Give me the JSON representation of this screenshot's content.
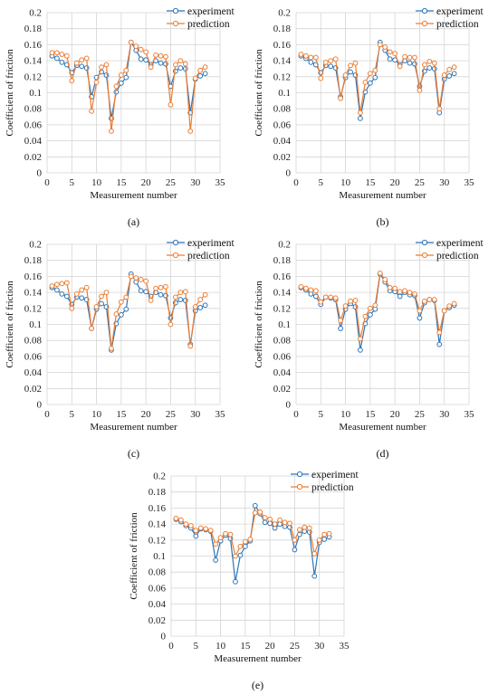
{
  "colors": {
    "experiment": "#2e75b6",
    "prediction": "#ed7d31",
    "grid": "#d4d4d4"
  },
  "chart_data": [
    {
      "panel_label": "(a)",
      "type": "line",
      "xlabel": "Measurement number",
      "ylabel": "Coefficient of friction",
      "xlim": [
        0,
        35
      ],
      "ylim": [
        0,
        0.2
      ],
      "xticks": [
        0,
        5,
        10,
        15,
        20,
        25,
        30,
        35
      ],
      "yticks": [
        "0",
        "0.02",
        "0.04",
        "0.06",
        "0.08",
        "0.1",
        "0.12",
        "0.14",
        "0.16",
        "0.18",
        "0.2"
      ],
      "grid": true,
      "legend_position": "top-right",
      "x": [
        1,
        2,
        3,
        4,
        5,
        6,
        7,
        8,
        9,
        10,
        11,
        12,
        13,
        14,
        15,
        16,
        17,
        18,
        19,
        20,
        21,
        22,
        23,
        24,
        25,
        26,
        27,
        28,
        29,
        30,
        31,
        32
      ],
      "series": [
        {
          "name": "experiment",
          "values": [
            0.146,
            0.143,
            0.138,
            0.135,
            0.125,
            0.134,
            0.133,
            0.131,
            0.095,
            0.119,
            0.126,
            0.122,
            0.068,
            0.101,
            0.112,
            0.119,
            0.163,
            0.153,
            0.142,
            0.141,
            0.135,
            0.14,
            0.137,
            0.136,
            0.108,
            0.127,
            0.131,
            0.13,
            0.075,
            0.117,
            0.121,
            0.124
          ]
        },
        {
          "name": "prediction",
          "values": [
            0.15,
            0.15,
            0.148,
            0.146,
            0.115,
            0.137,
            0.141,
            0.143,
            0.077,
            0.113,
            0.132,
            0.135,
            0.052,
            0.108,
            0.122,
            0.128,
            0.163,
            0.158,
            0.154,
            0.151,
            0.132,
            0.147,
            0.146,
            0.145,
            0.085,
            0.135,
            0.14,
            0.136,
            0.052,
            0.118,
            0.128,
            0.132
          ]
        }
      ]
    },
    {
      "panel_label": "(b)",
      "type": "line",
      "xlabel": "Measurement number",
      "ylabel": "Coefficient of friction",
      "xlim": [
        0,
        35
      ],
      "ylim": [
        0,
        0.2
      ],
      "xticks": [
        0,
        5,
        10,
        15,
        20,
        25,
        30,
        35
      ],
      "yticks": [
        "0",
        "0.02",
        "0.04",
        "0.06",
        "0.08",
        "0.1",
        "0.12",
        "0.14",
        "0.16",
        "0.18",
        "0.2"
      ],
      "grid": true,
      "legend_position": "top-right",
      "x": [
        1,
        2,
        3,
        4,
        5,
        6,
        7,
        8,
        9,
        10,
        11,
        12,
        13,
        14,
        15,
        16,
        17,
        18,
        19,
        20,
        21,
        22,
        23,
        24,
        25,
        26,
        27,
        28,
        29,
        30,
        31,
        32
      ],
      "series": [
        {
          "name": "experiment",
          "values": [
            0.146,
            0.143,
            0.138,
            0.135,
            0.125,
            0.134,
            0.133,
            0.131,
            0.095,
            0.119,
            0.126,
            0.122,
            0.068,
            0.101,
            0.112,
            0.119,
            0.163,
            0.153,
            0.142,
            0.141,
            0.135,
            0.14,
            0.137,
            0.136,
            0.108,
            0.127,
            0.131,
            0.13,
            0.075,
            0.117,
            0.121,
            0.124
          ]
        },
        {
          "name": "prediction",
          "values": [
            0.148,
            0.146,
            0.144,
            0.144,
            0.118,
            0.138,
            0.14,
            0.142,
            0.093,
            0.122,
            0.134,
            0.137,
            0.075,
            0.113,
            0.124,
            0.128,
            0.16,
            0.157,
            0.151,
            0.149,
            0.133,
            0.145,
            0.144,
            0.144,
            0.103,
            0.135,
            0.139,
            0.137,
            0.08,
            0.122,
            0.129,
            0.132
          ]
        }
      ]
    },
    {
      "panel_label": "(c)",
      "type": "line",
      "xlabel": "Measurement number",
      "ylabel": "Coefficient of friction",
      "xlim": [
        0,
        35
      ],
      "ylim": [
        0,
        0.2
      ],
      "xticks": [
        0,
        5,
        10,
        15,
        20,
        25,
        30,
        35
      ],
      "yticks": [
        "0",
        "0.02",
        "0.04",
        "0.06",
        "0.08",
        "0.1",
        "0.12",
        "0.14",
        "0.16",
        "0.18",
        "0.2"
      ],
      "grid": true,
      "legend_position": "top-right",
      "x": [
        1,
        2,
        3,
        4,
        5,
        6,
        7,
        8,
        9,
        10,
        11,
        12,
        13,
        14,
        15,
        16,
        17,
        18,
        19,
        20,
        21,
        22,
        23,
        24,
        25,
        26,
        27,
        28,
        29,
        30,
        31,
        32
      ],
      "series": [
        {
          "name": "experiment",
          "values": [
            0.146,
            0.143,
            0.138,
            0.135,
            0.125,
            0.134,
            0.133,
            0.131,
            0.095,
            0.119,
            0.126,
            0.122,
            0.068,
            0.101,
            0.112,
            0.119,
            0.163,
            0.153,
            0.142,
            0.141,
            0.135,
            0.14,
            0.137,
            0.136,
            0.108,
            0.127,
            0.131,
            0.13,
            0.075,
            0.117,
            0.121,
            0.124
          ]
        },
        {
          "name": "prediction",
          "values": [
            0.148,
            0.15,
            0.151,
            0.152,
            0.12,
            0.138,
            0.143,
            0.146,
            0.095,
            0.122,
            0.135,
            0.14,
            0.07,
            0.113,
            0.128,
            0.134,
            0.16,
            0.158,
            0.156,
            0.154,
            0.13,
            0.145,
            0.146,
            0.147,
            0.1,
            0.134,
            0.14,
            0.141,
            0.073,
            0.122,
            0.131,
            0.137
          ]
        }
      ]
    },
    {
      "panel_label": "(d)",
      "type": "line",
      "xlabel": "Measurement number",
      "ylabel": "Coefficient of friction",
      "xlim": [
        0,
        35
      ],
      "ylim": [
        0,
        0.2
      ],
      "xticks": [
        0,
        5,
        10,
        15,
        20,
        25,
        30,
        35
      ],
      "yticks": [
        "0",
        "0.02",
        "0.04",
        "0.06",
        "0.08",
        "0.1",
        "0.12",
        "0.14",
        "0.16",
        "0.18",
        "0.2"
      ],
      "grid": true,
      "legend_position": "top-right",
      "x": [
        1,
        2,
        3,
        4,
        5,
        6,
        7,
        8,
        9,
        10,
        11,
        12,
        13,
        14,
        15,
        16,
        17,
        18,
        19,
        20,
        21,
        22,
        23,
        24,
        25,
        26,
        27,
        28,
        29,
        30,
        31,
        32
      ],
      "series": [
        {
          "name": "experiment",
          "values": [
            0.146,
            0.143,
            0.138,
            0.135,
            0.125,
            0.134,
            0.133,
            0.131,
            0.095,
            0.119,
            0.126,
            0.122,
            0.068,
            0.101,
            0.112,
            0.119,
            0.163,
            0.153,
            0.142,
            0.141,
            0.135,
            0.14,
            0.137,
            0.136,
            0.108,
            0.127,
            0.131,
            0.13,
            0.075,
            0.117,
            0.121,
            0.124
          ]
        },
        {
          "name": "prediction",
          "values": [
            0.147,
            0.145,
            0.143,
            0.142,
            0.128,
            0.134,
            0.134,
            0.133,
            0.105,
            0.123,
            0.129,
            0.13,
            0.082,
            0.11,
            0.12,
            0.124,
            0.164,
            0.156,
            0.146,
            0.145,
            0.141,
            0.142,
            0.14,
            0.138,
            0.117,
            0.129,
            0.131,
            0.131,
            0.09,
            0.117,
            0.123,
            0.126
          ]
        }
      ]
    },
    {
      "panel_label": "(e)",
      "type": "line",
      "xlabel": "Measurement number",
      "ylabel": "Coefficient of friction",
      "xlim": [
        0,
        35
      ],
      "ylim": [
        0,
        0.2
      ],
      "xticks": [
        0,
        5,
        10,
        15,
        20,
        25,
        30,
        35
      ],
      "yticks": [
        "0",
        "0.02",
        "0.04",
        "0.06",
        "0.08",
        "0.1",
        "0.12",
        "0.14",
        "0.16",
        "0.18",
        "0.2"
      ],
      "grid": true,
      "legend_position": "top-right",
      "x": [
        1,
        2,
        3,
        4,
        5,
        6,
        7,
        8,
        9,
        10,
        11,
        12,
        13,
        14,
        15,
        16,
        17,
        18,
        19,
        20,
        21,
        22,
        23,
        24,
        25,
        26,
        27,
        28,
        29,
        30,
        31,
        32
      ],
      "series": [
        {
          "name": "experiment",
          "values": [
            0.146,
            0.143,
            0.138,
            0.135,
            0.125,
            0.134,
            0.133,
            0.131,
            0.095,
            0.119,
            0.126,
            0.122,
            0.068,
            0.101,
            0.112,
            0.119,
            0.163,
            0.153,
            0.142,
            0.141,
            0.135,
            0.14,
            0.137,
            0.136,
            0.108,
            0.127,
            0.131,
            0.13,
            0.075,
            0.117,
            0.121,
            0.124
          ]
        },
        {
          "name": "prediction",
          "values": [
            0.147,
            0.145,
            0.14,
            0.138,
            0.132,
            0.135,
            0.134,
            0.132,
            0.115,
            0.123,
            0.128,
            0.127,
            0.1,
            0.112,
            0.118,
            0.121,
            0.154,
            0.155,
            0.148,
            0.146,
            0.14,
            0.145,
            0.142,
            0.141,
            0.12,
            0.133,
            0.136,
            0.135,
            0.103,
            0.12,
            0.127,
            0.128
          ]
        }
      ]
    }
  ]
}
